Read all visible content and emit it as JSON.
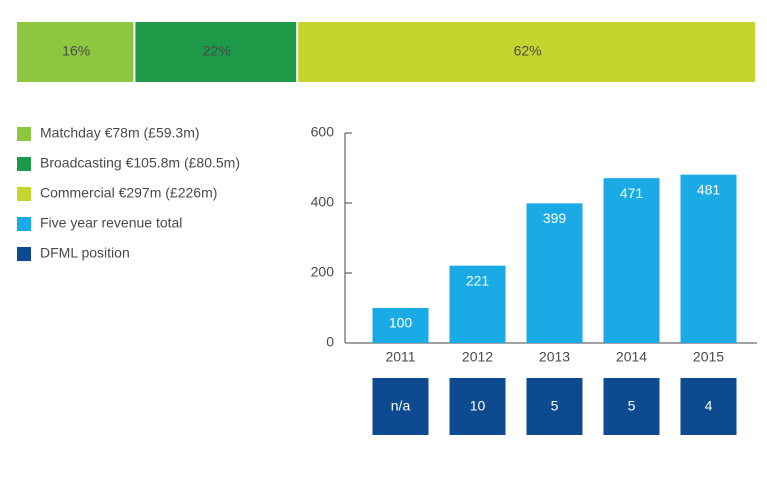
{
  "chart_data": [
    {
      "type": "share-bar",
      "series": [
        {
          "name": "Matchday €78m (£59.3m)",
          "color": "#8dc63f",
          "values": [
            16
          ],
          "value_labels": [
            "16%"
          ]
        },
        {
          "name": "Broadcasting €105.8m (£80.5m)",
          "color": "#1e9a49",
          "values": [
            22
          ],
          "value_labels": [
            "22%"
          ]
        },
        {
          "name": "Commercial €297m (£226m)",
          "color": "#c5d52e",
          "values": [
            62
          ],
          "value_labels": [
            "62%"
          ]
        }
      ]
    },
    {
      "type": "bar",
      "categories": [
        "2011",
        "2012",
        "2013",
        "2014",
        "2015"
      ],
      "series": [
        {
          "name": "Five year revenue total",
          "color": "#1aabe6",
          "values": [
            100,
            221,
            399,
            471,
            481
          ]
        }
      ],
      "ylim": [
        0,
        600
      ],
      "yticks": [
        0,
        200,
        400,
        600
      ]
    },
    {
      "type": "position-row",
      "series": [
        {
          "name": "DFML position",
          "color": "#0d4a8f",
          "values": [
            null,
            10,
            5,
            5,
            4
          ],
          "value_labels": [
            "n/a",
            "10",
            "5",
            "5",
            "4"
          ]
        }
      ]
    }
  ]
}
